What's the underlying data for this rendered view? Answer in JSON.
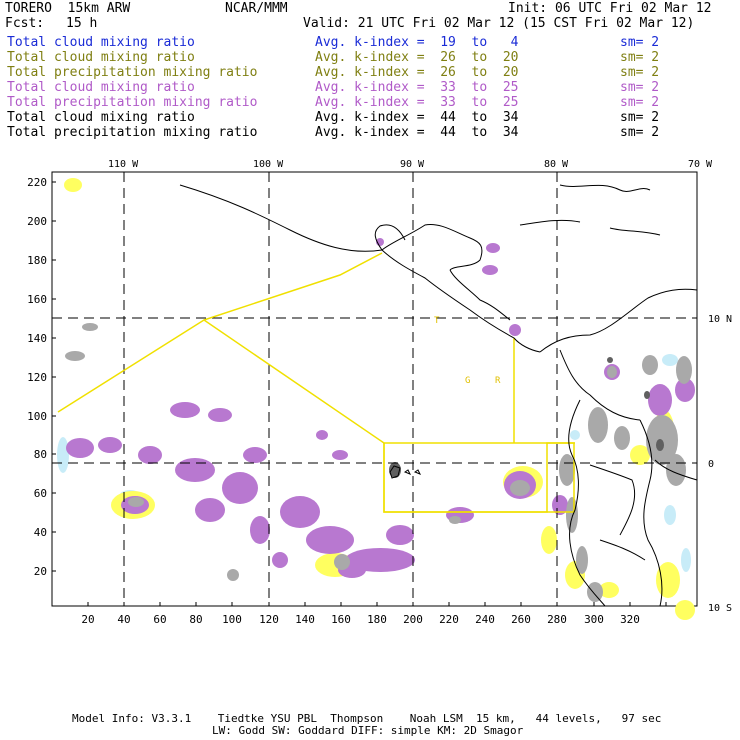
{
  "header": {
    "model": "TORERO  15km ARW",
    "org": "NCAR/MMM",
    "init": "Init: 06 UTC Fri 02 Mar 12",
    "fcst_label": "Fcst:",
    "fcst_value": "15 h",
    "valid": "Valid: 21 UTC Fri 02 Mar 12 (15 CST Fri 02 Mar 12)"
  },
  "legend": [
    {
      "field": "Total cloud mixing ratio",
      "kindex": "Avg. k-index =  19  to   4",
      "sm": "sm= 2",
      "color": "#1a2bd6"
    },
    {
      "field": "Total cloud mixing ratio",
      "kindex": "Avg. k-index =  26  to  20",
      "sm": "sm= 2",
      "color": "#7f7f12"
    },
    {
      "field": "Total precipitation mixing ratio",
      "kindex": "Avg. k-index =  26  to  20",
      "sm": "sm= 2",
      "color": "#7f7f12"
    },
    {
      "field": "Total cloud mixing ratio",
      "kindex": "Avg. k-index =  33  to  25",
      "sm": "sm= 2",
      "color": "#b05ac8"
    },
    {
      "field": "Total precipitation mixing ratio",
      "kindex": "Avg. k-index =  33  to  25",
      "sm": "sm= 2",
      "color": "#b05ac8"
    },
    {
      "field": "Total cloud mixing ratio",
      "kindex": "Avg. k-index =  44  to  34",
      "sm": "sm= 2",
      "color": "#000000"
    },
    {
      "field": "Total precipitation mixing ratio",
      "kindex": "Avg. k-index =  44  to  34",
      "sm": "sm= 2",
      "color": "#000000"
    }
  ],
  "map": {
    "top_lon_labels": [
      "110 W",
      "100 W",
      "90 W",
      "80 W",
      "70 W"
    ],
    "right_lat_labels": [
      "10 N",
      "0",
      "10 S"
    ],
    "y_ticks": [
      "220",
      "200",
      "180",
      "160",
      "140",
      "120",
      "100",
      "80",
      "60",
      "40",
      "20"
    ],
    "x_ticks": [
      "20",
      "40",
      "60",
      "80",
      "100",
      "120",
      "140",
      "160",
      "180",
      "200",
      "220",
      "240",
      "260",
      "280",
      "300",
      "320"
    ],
    "domain_letters": [
      "T",
      "G",
      "R"
    ],
    "colors": {
      "gray_cloud": "#a9a9a9",
      "dark_gray": "#606060",
      "orchid": "#b878d0",
      "yellow": "#ffff60",
      "light_blue": "#c8ecf8",
      "domain_box": "#f0e000"
    }
  },
  "footer": {
    "line1": "Model Info: V3.3.1    Tiedtke YSU PBL  Thompson    Noah LSM  15 km,   44 levels,   97 sec",
    "line2": "LW: Godd SW: Goddard DIFF: simple KM: 2D Smagor"
  }
}
